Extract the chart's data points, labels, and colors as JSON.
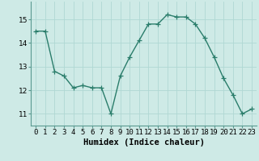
{
  "x": [
    0,
    1,
    2,
    3,
    4,
    5,
    6,
    7,
    8,
    9,
    10,
    11,
    12,
    13,
    14,
    15,
    16,
    17,
    18,
    19,
    20,
    21,
    22,
    23
  ],
  "y": [
    14.5,
    14.5,
    12.8,
    12.6,
    12.1,
    12.2,
    12.1,
    12.1,
    11.0,
    12.6,
    13.4,
    14.1,
    14.8,
    14.8,
    15.2,
    15.1,
    15.1,
    14.8,
    14.2,
    13.4,
    12.5,
    11.8,
    11.0,
    11.2
  ],
  "line_color": "#2a7d6b",
  "marker": "+",
  "markersize": 4,
  "linewidth": 1.0,
  "bg_color": "#ceeae6",
  "grid_color": "#b0d8d3",
  "xlabel": "Humidex (Indice chaleur)",
  "xlim": [
    -0.5,
    23.5
  ],
  "ylim": [
    10.5,
    15.75
  ],
  "yticks": [
    11,
    12,
    13,
    14,
    15
  ],
  "xlabel_fontsize": 7.5,
  "tick_fontsize": 6.5
}
